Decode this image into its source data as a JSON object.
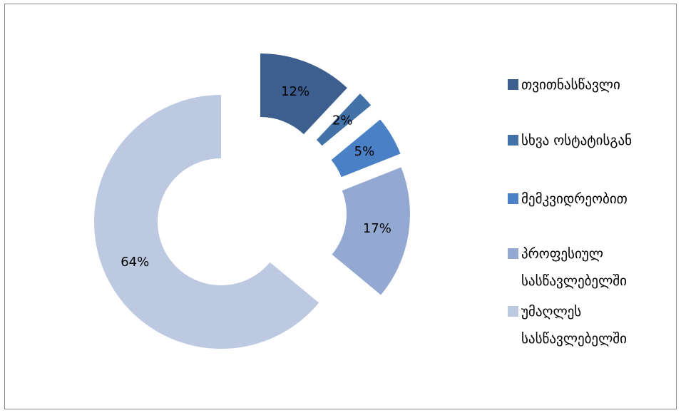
{
  "chart_data": {
    "type": "donut",
    "categories": [
      "თვითნასწავლი",
      "სხვა ოსტატისგან",
      "მემკვიდრეობით",
      "პროფესიულ სასწავლებელში",
      "უმაღლეს სასწავლებელში"
    ],
    "values": [
      12,
      2,
      5,
      17,
      64
    ],
    "value_labels": [
      "12%",
      "2%",
      "5%",
      "17%",
      "64%"
    ],
    "colors": [
      "#3c5f8f",
      "#4372a8",
      "#4a80c5",
      "#94a9d1",
      "#bcc9e1"
    ],
    "legend": "right"
  }
}
